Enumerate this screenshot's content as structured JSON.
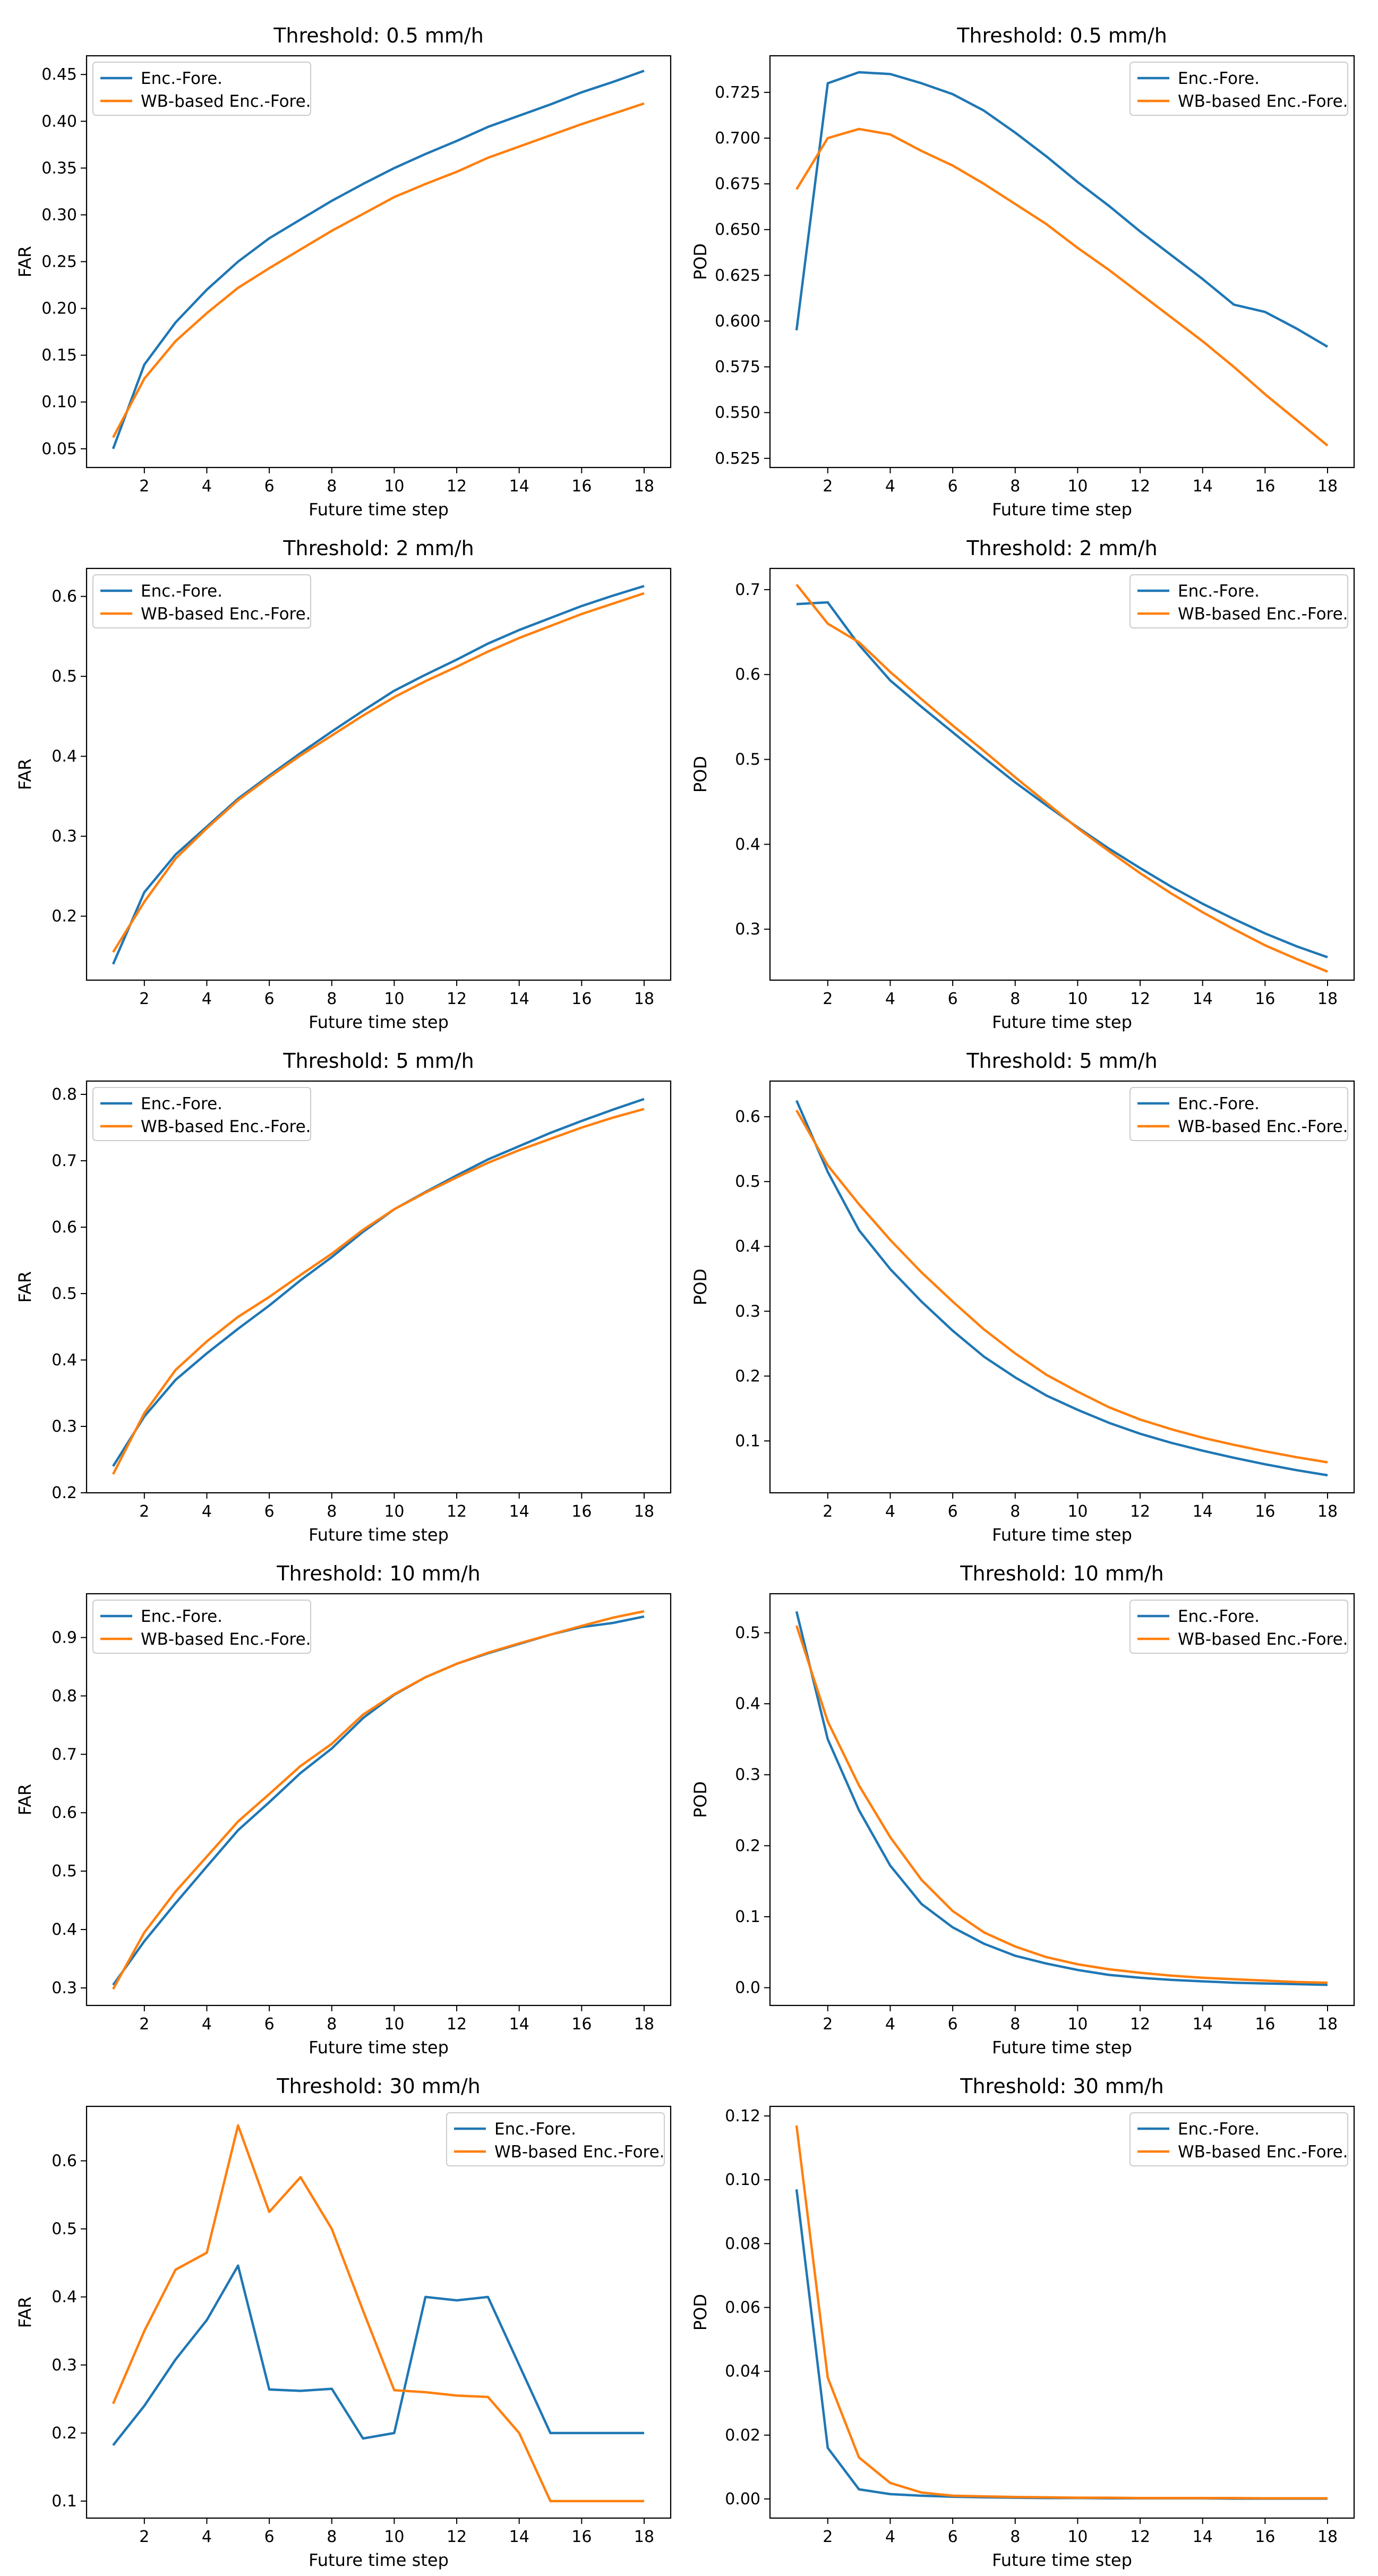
{
  "colors": {
    "enc_fore": "#1f77b4",
    "wb_based": "#ff7f0e",
    "axis": "#000000",
    "legend_border": "#cccccc"
  },
  "chart_data": [
    {
      "type": "line",
      "title": "Threshold: 0.5 mm/h",
      "xlabel": "Future time step",
      "ylabel": "FAR",
      "x": [
        1,
        2,
        3,
        4,
        5,
        6,
        7,
        8,
        9,
        10,
        11,
        12,
        13,
        14,
        15,
        16,
        17,
        18
      ],
      "xlim": [
        0.15,
        18.85
      ],
      "ylim": [
        0.03,
        0.47
      ],
      "xticks": [
        2,
        4,
        6,
        8,
        10,
        12,
        14,
        16,
        18
      ],
      "xtick_labels": [
        "2",
        "4",
        "6",
        "8",
        "10",
        "12",
        "14",
        "16",
        "18"
      ],
      "yticks": [
        0.05,
        0.1,
        0.15,
        0.2,
        0.25,
        0.3,
        0.35,
        0.4,
        0.45
      ],
      "ytick_labels": [
        "0.05",
        "0.10",
        "0.15",
        "0.20",
        "0.25",
        "0.30",
        "0.35",
        "0.40",
        "0.45"
      ],
      "legend_loc": "upper left",
      "series": [
        {
          "name": "Enc.-Fore.",
          "values": [
            0.05,
            0.14,
            0.185,
            0.22,
            0.25,
            0.275,
            0.295,
            0.315,
            0.333,
            0.35,
            0.365,
            0.379,
            0.394,
            0.406,
            0.418,
            0.431,
            0.442,
            0.454
          ]
        },
        {
          "name": "WB-based Enc.-Fore.",
          "values": [
            0.062,
            0.125,
            0.165,
            0.195,
            0.222,
            0.243,
            0.263,
            0.283,
            0.301,
            0.319,
            0.333,
            0.346,
            0.361,
            0.373,
            0.385,
            0.397,
            0.408,
            0.419
          ]
        }
      ]
    },
    {
      "type": "line",
      "title": "Threshold: 0.5 mm/h",
      "xlabel": "Future time step",
      "ylabel": "POD",
      "x": [
        1,
        2,
        3,
        4,
        5,
        6,
        7,
        8,
        9,
        10,
        11,
        12,
        13,
        14,
        15,
        16,
        17,
        18
      ],
      "xlim": [
        0.15,
        18.85
      ],
      "ylim": [
        0.52,
        0.745
      ],
      "xticks": [
        2,
        4,
        6,
        8,
        10,
        12,
        14,
        16,
        18
      ],
      "xtick_labels": [
        "2",
        "4",
        "6",
        "8",
        "10",
        "12",
        "14",
        "16",
        "18"
      ],
      "yticks": [
        0.525,
        0.55,
        0.575,
        0.6,
        0.625,
        0.65,
        0.675,
        0.7,
        0.725
      ],
      "ytick_labels": [
        "0.525",
        "0.550",
        "0.575",
        "0.600",
        "0.625",
        "0.650",
        "0.675",
        "0.700",
        "0.725"
      ],
      "legend_loc": "upper right",
      "series": [
        {
          "name": "Enc.-Fore.",
          "values": [
            0.595,
            0.73,
            0.736,
            0.735,
            0.73,
            0.724,
            0.715,
            0.703,
            0.69,
            0.676,
            0.663,
            0.649,
            0.636,
            0.623,
            0.609,
            0.605,
            0.596,
            0.586
          ]
        },
        {
          "name": "WB-based Enc.-Fore.",
          "values": [
            0.672,
            0.7,
            0.705,
            0.702,
            0.693,
            0.685,
            0.675,
            0.664,
            0.653,
            0.64,
            0.628,
            0.615,
            0.602,
            0.589,
            0.575,
            0.56,
            0.546,
            0.532
          ]
        }
      ]
    },
    {
      "type": "line",
      "title": "Threshold: 2 mm/h",
      "xlabel": "Future time step",
      "ylabel": "FAR",
      "x": [
        1,
        2,
        3,
        4,
        5,
        6,
        7,
        8,
        9,
        10,
        11,
        12,
        13,
        14,
        15,
        16,
        17,
        18
      ],
      "xlim": [
        0.15,
        18.85
      ],
      "ylim": [
        0.12,
        0.635
      ],
      "xticks": [
        2,
        4,
        6,
        8,
        10,
        12,
        14,
        16,
        18
      ],
      "xtick_labels": [
        "2",
        "4",
        "6",
        "8",
        "10",
        "12",
        "14",
        "16",
        "18"
      ],
      "yticks": [
        0.2,
        0.3,
        0.4,
        0.5,
        0.6
      ],
      "ytick_labels": [
        "0.2",
        "0.3",
        "0.4",
        "0.5",
        "0.6"
      ],
      "legend_loc": "upper left",
      "series": [
        {
          "name": "Enc.-Fore.",
          "values": [
            0.14,
            0.23,
            0.277,
            0.312,
            0.347,
            0.376,
            0.404,
            0.431,
            0.457,
            0.482,
            0.502,
            0.521,
            0.541,
            0.558,
            0.573,
            0.588,
            0.601,
            0.613
          ]
        },
        {
          "name": "WB-based Enc.-Fore.",
          "values": [
            0.155,
            0.218,
            0.272,
            0.31,
            0.345,
            0.374,
            0.401,
            0.426,
            0.451,
            0.474,
            0.494,
            0.512,
            0.531,
            0.548,
            0.563,
            0.578,
            0.591,
            0.604
          ]
        }
      ]
    },
    {
      "type": "line",
      "title": "Threshold: 2 mm/h",
      "xlabel": "Future time step",
      "ylabel": "POD",
      "x": [
        1,
        2,
        3,
        4,
        5,
        6,
        7,
        8,
        9,
        10,
        11,
        12,
        13,
        14,
        15,
        16,
        17,
        18
      ],
      "xlim": [
        0.15,
        18.85
      ],
      "ylim": [
        0.24,
        0.725
      ],
      "xticks": [
        2,
        4,
        6,
        8,
        10,
        12,
        14,
        16,
        18
      ],
      "xtick_labels": [
        "2",
        "4",
        "6",
        "8",
        "10",
        "12",
        "14",
        "16",
        "18"
      ],
      "yticks": [
        0.3,
        0.4,
        0.5,
        0.6,
        0.7
      ],
      "ytick_labels": [
        "0.3",
        "0.4",
        "0.5",
        "0.6",
        "0.7"
      ],
      "legend_loc": "upper right",
      "series": [
        {
          "name": "Enc.-Fore.",
          "values": [
            0.683,
            0.685,
            0.635,
            0.593,
            0.562,
            0.532,
            0.502,
            0.473,
            0.446,
            0.42,
            0.395,
            0.372,
            0.35,
            0.33,
            0.312,
            0.295,
            0.28,
            0.267
          ]
        },
        {
          "name": "WB-based Enc.-Fore.",
          "values": [
            0.706,
            0.66,
            0.638,
            0.603,
            0.571,
            0.54,
            0.51,
            0.479,
            0.449,
            0.419,
            0.392,
            0.366,
            0.342,
            0.32,
            0.3,
            0.281,
            0.265,
            0.25
          ]
        }
      ]
    },
    {
      "type": "line",
      "title": "Threshold: 5 mm/h",
      "xlabel": "Future time step",
      "ylabel": "FAR",
      "x": [
        1,
        2,
        3,
        4,
        5,
        6,
        7,
        8,
        9,
        10,
        11,
        12,
        13,
        14,
        15,
        16,
        17,
        18
      ],
      "xlim": [
        0.15,
        18.85
      ],
      "ylim": [
        0.2,
        0.82
      ],
      "xticks": [
        2,
        4,
        6,
        8,
        10,
        12,
        14,
        16,
        18
      ],
      "xtick_labels": [
        "2",
        "4",
        "6",
        "8",
        "10",
        "12",
        "14",
        "16",
        "18"
      ],
      "yticks": [
        0.2,
        0.3,
        0.4,
        0.5,
        0.6,
        0.7,
        0.8
      ],
      "ytick_labels": [
        "0.2",
        "0.3",
        "0.4",
        "0.5",
        "0.6",
        "0.7",
        "0.8"
      ],
      "legend_loc": "upper left",
      "series": [
        {
          "name": "Enc.-Fore.",
          "values": [
            0.24,
            0.315,
            0.37,
            0.41,
            0.447,
            0.482,
            0.52,
            0.555,
            0.593,
            0.627,
            0.653,
            0.678,
            0.702,
            0.722,
            0.742,
            0.76,
            0.777,
            0.793
          ]
        },
        {
          "name": "WB-based Enc.-Fore.",
          "values": [
            0.228,
            0.32,
            0.385,
            0.428,
            0.465,
            0.495,
            0.528,
            0.56,
            0.596,
            0.627,
            0.652,
            0.675,
            0.697,
            0.716,
            0.733,
            0.75,
            0.765,
            0.778
          ]
        }
      ]
    },
    {
      "type": "line",
      "title": "Threshold: 5 mm/h",
      "xlabel": "Future time step",
      "ylabel": "POD",
      "x": [
        1,
        2,
        3,
        4,
        5,
        6,
        7,
        8,
        9,
        10,
        11,
        12,
        13,
        14,
        15,
        16,
        17,
        18
      ],
      "xlim": [
        0.15,
        18.85
      ],
      "ylim": [
        0.02,
        0.655
      ],
      "xticks": [
        2,
        4,
        6,
        8,
        10,
        12,
        14,
        16,
        18
      ],
      "xtick_labels": [
        "2",
        "4",
        "6",
        "8",
        "10",
        "12",
        "14",
        "16",
        "18"
      ],
      "yticks": [
        0.1,
        0.2,
        0.3,
        0.4,
        0.5,
        0.6
      ],
      "ytick_labels": [
        "0.1",
        "0.2",
        "0.3",
        "0.4",
        "0.5",
        "0.6"
      ],
      "legend_loc": "upper right",
      "series": [
        {
          "name": "Enc.-Fore.",
          "values": [
            0.625,
            0.515,
            0.425,
            0.365,
            0.315,
            0.27,
            0.23,
            0.198,
            0.17,
            0.148,
            0.128,
            0.111,
            0.097,
            0.085,
            0.074,
            0.064,
            0.055,
            0.047
          ]
        },
        {
          "name": "WB-based Enc.-Fore.",
          "values": [
            0.61,
            0.525,
            0.465,
            0.41,
            0.36,
            0.315,
            0.272,
            0.235,
            0.202,
            0.176,
            0.152,
            0.133,
            0.118,
            0.105,
            0.094,
            0.084,
            0.075,
            0.067
          ]
        }
      ]
    },
    {
      "type": "line",
      "title": "Threshold: 10 mm/h",
      "xlabel": "Future time step",
      "ylabel": "FAR",
      "x": [
        1,
        2,
        3,
        4,
        5,
        6,
        7,
        8,
        9,
        10,
        11,
        12,
        13,
        14,
        15,
        16,
        17,
        18
      ],
      "xlim": [
        0.15,
        18.85
      ],
      "ylim": [
        0.27,
        0.975
      ],
      "xticks": [
        2,
        4,
        6,
        8,
        10,
        12,
        14,
        16,
        18
      ],
      "xtick_labels": [
        "2",
        "4",
        "6",
        "8",
        "10",
        "12",
        "14",
        "16",
        "18"
      ],
      "yticks": [
        0.3,
        0.4,
        0.5,
        0.6,
        0.7,
        0.8,
        0.9
      ],
      "ytick_labels": [
        "0.3",
        "0.4",
        "0.5",
        "0.6",
        "0.7",
        "0.8",
        "0.9"
      ],
      "legend_loc": "upper left",
      "series": [
        {
          "name": "Enc.-Fore.",
          "values": [
            0.305,
            0.38,
            0.445,
            0.508,
            0.57,
            0.618,
            0.668,
            0.71,
            0.762,
            0.802,
            0.832,
            0.855,
            0.873,
            0.889,
            0.905,
            0.918,
            0.925,
            0.936
          ]
        },
        {
          "name": "WB-based Enc.-Fore.",
          "values": [
            0.298,
            0.395,
            0.465,
            0.525,
            0.585,
            0.632,
            0.68,
            0.718,
            0.768,
            0.803,
            0.832,
            0.855,
            0.874,
            0.89,
            0.905,
            0.92,
            0.934,
            0.945
          ]
        }
      ]
    },
    {
      "type": "line",
      "title": "Threshold: 10 mm/h",
      "xlabel": "Future time step",
      "ylabel": "POD",
      "x": [
        1,
        2,
        3,
        4,
        5,
        6,
        7,
        8,
        9,
        10,
        11,
        12,
        13,
        14,
        15,
        16,
        17,
        18
      ],
      "xlim": [
        0.15,
        18.85
      ],
      "ylim": [
        -0.025,
        0.555
      ],
      "xticks": [
        2,
        4,
        6,
        8,
        10,
        12,
        14,
        16,
        18
      ],
      "xtick_labels": [
        "2",
        "4",
        "6",
        "8",
        "10",
        "12",
        "14",
        "16",
        "18"
      ],
      "yticks": [
        0.0,
        0.1,
        0.2,
        0.3,
        0.4,
        0.5
      ],
      "ytick_labels": [
        "0.0",
        "0.1",
        "0.2",
        "0.3",
        "0.4",
        "0.5"
      ],
      "legend_loc": "upper right",
      "series": [
        {
          "name": "Enc.-Fore.",
          "values": [
            0.53,
            0.35,
            0.25,
            0.172,
            0.118,
            0.085,
            0.062,
            0.045,
            0.034,
            0.025,
            0.018,
            0.014,
            0.011,
            0.009,
            0.007,
            0.006,
            0.005,
            0.004
          ]
        },
        {
          "name": "WB-based Enc.-Fore.",
          "values": [
            0.51,
            0.375,
            0.285,
            0.212,
            0.152,
            0.108,
            0.078,
            0.058,
            0.043,
            0.033,
            0.026,
            0.021,
            0.017,
            0.014,
            0.012,
            0.01,
            0.008,
            0.007
          ]
        }
      ]
    },
    {
      "type": "line",
      "title": "Threshold: 30 mm/h",
      "xlabel": "Future time step",
      "ylabel": "FAR",
      "x": [
        1,
        2,
        3,
        4,
        5,
        6,
        7,
        8,
        9,
        10,
        11,
        12,
        13,
        14,
        15,
        16,
        17,
        18
      ],
      "xlim": [
        0.15,
        18.85
      ],
      "ylim": [
        0.075,
        0.68
      ],
      "xticks": [
        2,
        4,
        6,
        8,
        10,
        12,
        14,
        16,
        18
      ],
      "xtick_labels": [
        "2",
        "4",
        "6",
        "8",
        "10",
        "12",
        "14",
        "16",
        "18"
      ],
      "yticks": [
        0.1,
        0.2,
        0.3,
        0.4,
        0.5,
        0.6
      ],
      "ytick_labels": [
        "0.1",
        "0.2",
        "0.3",
        "0.4",
        "0.5",
        "0.6"
      ],
      "legend_loc": "upper right",
      "series": [
        {
          "name": "Enc.-Fore.",
          "values": [
            0.182,
            0.24,
            0.308,
            0.366,
            0.446,
            0.264,
            0.262,
            0.265,
            0.192,
            0.2,
            0.4,
            0.395,
            0.4,
            0.3,
            0.2,
            0.2,
            0.2,
            0.2
          ]
        },
        {
          "name": "WB-based Enc.-Fore.",
          "values": [
            0.243,
            0.35,
            0.44,
            0.465,
            0.652,
            0.525,
            0.576,
            0.5,
            0.38,
            0.263,
            0.26,
            0.255,
            0.253,
            0.2,
            0.1,
            0.1,
            0.1,
            0.1
          ]
        }
      ]
    },
    {
      "type": "line",
      "title": "Threshold: 30 mm/h",
      "xlabel": "Future time step",
      "ylabel": "POD",
      "x": [
        1,
        2,
        3,
        4,
        5,
        6,
        7,
        8,
        9,
        10,
        11,
        12,
        13,
        14,
        15,
        16,
        17,
        18
      ],
      "xlim": [
        0.15,
        18.85
      ],
      "ylim": [
        -0.006,
        0.123
      ],
      "xticks": [
        2,
        4,
        6,
        8,
        10,
        12,
        14,
        16,
        18
      ],
      "xtick_labels": [
        "2",
        "4",
        "6",
        "8",
        "10",
        "12",
        "14",
        "16",
        "18"
      ],
      "yticks": [
        0.0,
        0.02,
        0.04,
        0.06,
        0.08,
        0.1,
        0.12
      ],
      "ytick_labels": [
        "0.00",
        "0.02",
        "0.04",
        "0.06",
        "0.08",
        "0.10",
        "0.12"
      ],
      "legend_loc": "upper right",
      "series": [
        {
          "name": "Enc.-Fore.",
          "values": [
            0.097,
            0.016,
            0.003,
            0.0015,
            0.001,
            0.0007,
            0.0005,
            0.0004,
            0.0003,
            0.0003,
            0.0002,
            0.0002,
            0.0002,
            0.0002,
            0.0001,
            0.0001,
            0.0001,
            0.0001
          ]
        },
        {
          "name": "WB-based Enc.-Fore.",
          "values": [
            0.117,
            0.038,
            0.013,
            0.005,
            0.002,
            0.001,
            0.0008,
            0.0006,
            0.0005,
            0.0004,
            0.0004,
            0.0003,
            0.0003,
            0.0003,
            0.0003,
            0.0002,
            0.0002,
            0.0002
          ]
        }
      ]
    }
  ]
}
